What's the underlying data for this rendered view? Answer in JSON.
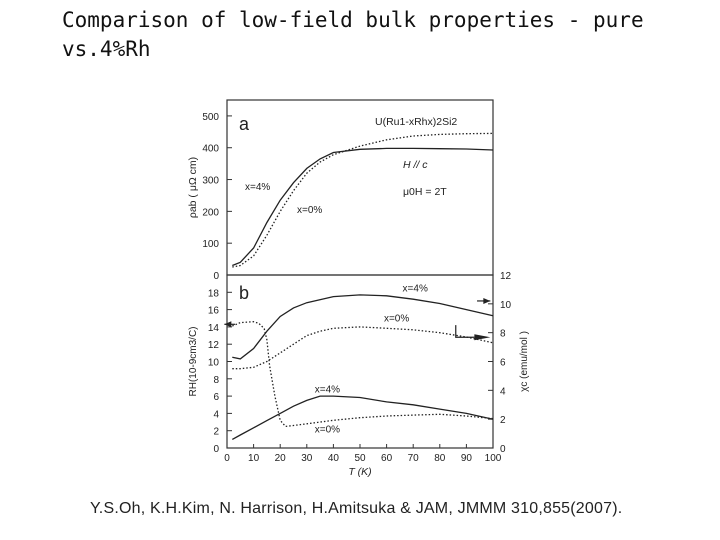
{
  "slide": {
    "title": "Comparison of low-field bulk properties - pure vs.4%Rh",
    "citation": "Y.S.Oh, K.H.Kim, N. Harrison, H.Amitsuka & JAM, JMMM 310,855(2007)."
  },
  "chart_data": [
    {
      "type": "line",
      "panel_label": "a",
      "title": "U(Ru1-xRhx)2Si2",
      "xlabel": "T (K)",
      "ylabel": "ρab ( μΩ cm)",
      "xlim": [
        0,
        100
      ],
      "ylim": [
        0,
        550
      ],
      "yticks": [
        0,
        100,
        200,
        300,
        400,
        500
      ],
      "annotations": [
        "H // c",
        "μ0H = 2T"
      ],
      "series": [
        {
          "name": "x=4%",
          "style": "solid",
          "x": [
            2,
            5,
            10,
            15,
            20,
            25,
            30,
            35,
            40,
            50,
            60,
            70,
            80,
            90,
            100
          ],
          "y": [
            30,
            40,
            85,
            165,
            235,
            290,
            335,
            365,
            385,
            395,
            398,
            398,
            397,
            396,
            393
          ]
        },
        {
          "name": "x=0%",
          "style": "dotted",
          "x": [
            2,
            5,
            10,
            15,
            20,
            25,
            30,
            35,
            40,
            50,
            60,
            70,
            80,
            90,
            100
          ],
          "y": [
            25,
            30,
            60,
            125,
            200,
            265,
            320,
            355,
            378,
            405,
            425,
            437,
            442,
            444,
            445
          ]
        }
      ]
    },
    {
      "type": "line",
      "panel_label": "b",
      "xlabel": "T (K)",
      "xticks": [
        0,
        10,
        20,
        30,
        40,
        50,
        60,
        70,
        80,
        90,
        100
      ],
      "xlim": [
        0,
        100
      ],
      "ylabel_left": "RH(10-9cm3/C)",
      "ylim_left": [
        0,
        20
      ],
      "yticks_left": [
        0,
        2,
        4,
        6,
        8,
        10,
        12,
        14,
        16,
        18
      ],
      "ylabel_right": "χc (emu/mol )",
      "ylim_right": [
        0,
        12
      ],
      "yticks_right": [
        0,
        2,
        4,
        6,
        8,
        10,
        12
      ],
      "series": [
        {
          "name": "RH x=4%",
          "axis": "left",
          "style": "solid",
          "x": [
            2,
            5,
            10,
            15,
            20,
            25,
            30,
            40,
            50,
            60,
            70,
            80,
            90,
            100
          ],
          "y": [
            10.5,
            10.3,
            11.5,
            13.5,
            15.2,
            16.2,
            16.8,
            17.5,
            17.7,
            17.6,
            17.2,
            16.7,
            16.0,
            15.3
          ]
        },
        {
          "name": "RH x=0%",
          "axis": "left",
          "style": "dotted",
          "x": [
            2,
            5,
            10,
            12,
            14,
            15,
            16,
            18,
            20,
            22,
            25,
            30,
            40,
            50,
            60,
            70,
            80,
            90,
            100
          ],
          "y": [
            14.1,
            14.5,
            14.6,
            14.4,
            13.8,
            12.5,
            9.5,
            6.0,
            3.2,
            2.5,
            2.6,
            2.8,
            3.2,
            3.5,
            3.7,
            3.8,
            3.9,
            3.7,
            3.4
          ]
        },
        {
          "name": "χc x=4%",
          "axis": "right",
          "style": "solid",
          "x": [
            2,
            5,
            10,
            15,
            20,
            25,
            30,
            35,
            40,
            50,
            60,
            70,
            80,
            90,
            100
          ],
          "y": [
            0.6,
            0.9,
            1.4,
            1.9,
            2.4,
            2.9,
            3.3,
            3.6,
            3.6,
            3.5,
            3.2,
            3.0,
            2.7,
            2.4,
            2.0
          ]
        },
        {
          "name": "χc x=0%",
          "axis": "right",
          "style": "dotted",
          "x": [
            2,
            5,
            10,
            15,
            20,
            25,
            30,
            35,
            40,
            50,
            60,
            70,
            80,
            90,
            100
          ],
          "y": [
            5.5,
            5.5,
            5.6,
            6.0,
            6.6,
            7.2,
            7.8,
            8.1,
            8.3,
            8.4,
            8.3,
            8.2,
            8.0,
            7.7,
            7.3
          ]
        }
      ],
      "labels": [
        "x=4%",
        "x=0%",
        "x=4%",
        "x=0%"
      ]
    }
  ]
}
